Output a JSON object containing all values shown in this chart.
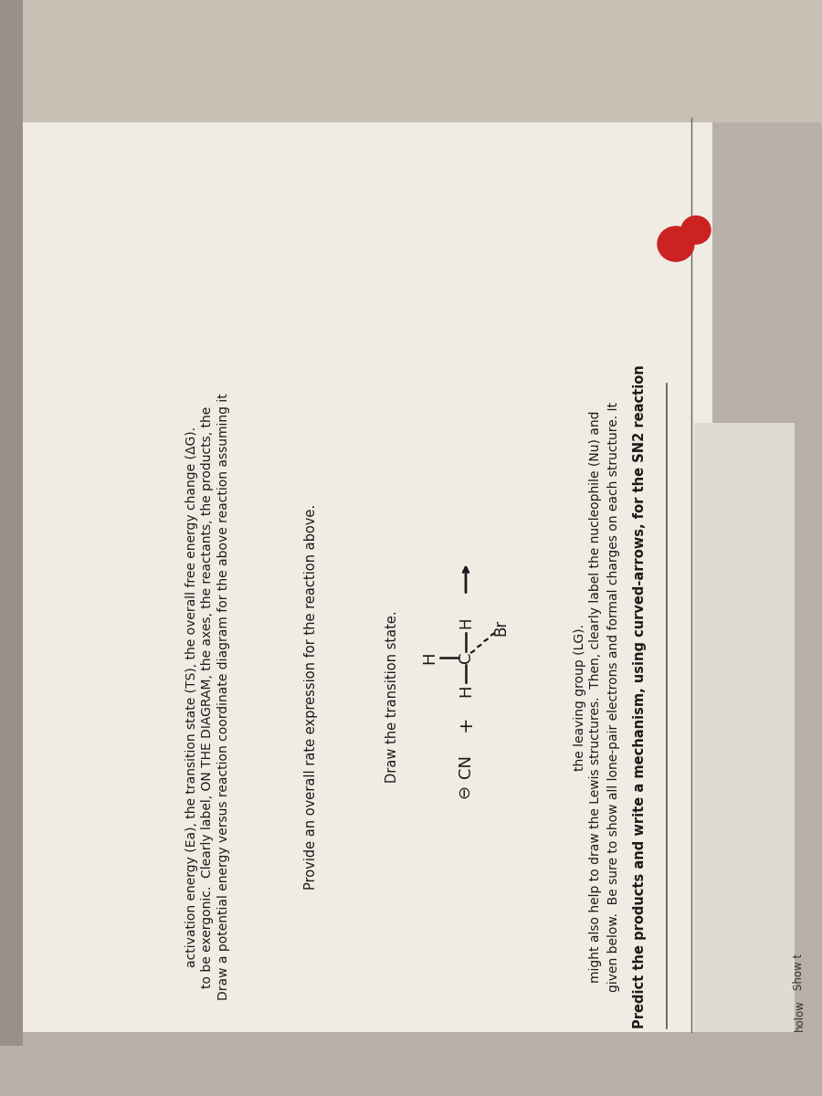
{
  "bg_color_outer": "#b8b0a8",
  "bg_color_paper": "#f0ece5",
  "bg_color_paper2": "#e8e2da",
  "title_text": "Predict the products and write a mechanism, using curved-arrows, for the SN2 reaction",
  "body_line1": "given below.  Be sure to show all lone-pair electrons and formal charges on each structure. It",
  "body_line2": "might also help to draw the Lewis structures.  Then, clearly label the nucleophile (Nu) and",
  "body_line3": "the leaving group (LG).",
  "section2_header": "Draw the transition state.",
  "section3_header": "Provide an overall rate expression for the reaction above.",
  "section4_line1": "Draw a potential energy versus reaction coordinate diagram for the above reaction assuming it",
  "section4_line2": "to be exergonic.  Clearly label, ON THE DIAGRAM, the axes, the reactants, the products, the",
  "section4_line3": "activation energy (Ea), the transition state (TS), the overall free energy change (ΔG).",
  "header_label": "holow  Show t",
  "text_color": "#1a1a1a",
  "line_color": "#444444",
  "logo_color": "#cc2222"
}
